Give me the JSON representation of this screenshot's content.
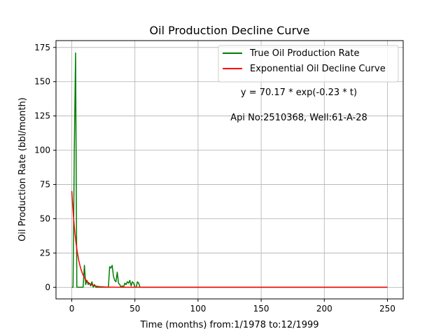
{
  "chart_data": {
    "type": "line",
    "title": "Oil Production Decline Curve",
    "xlabel": "Time (months) from:1/1978 to:12/1999",
    "ylabel": "Oil Production Rate (bbl/month)",
    "xlim": [
      -12.5,
      262.5
    ],
    "ylim": [
      -8.5,
      180
    ],
    "xticks": [
      0,
      50,
      100,
      150,
      200,
      250
    ],
    "yticks": [
      0,
      25,
      50,
      75,
      100,
      125,
      150,
      175
    ],
    "grid": true,
    "legend_position": "top-right",
    "annotations": [
      "y = 70.17 * exp(-0.23 * t)",
      "Api No:2510368, Well:61-A-28"
    ],
    "series": [
      {
        "name": "True Oil Production Rate",
        "color": "#008000",
        "x": [
          0,
          1,
          2,
          3,
          4,
          5,
          6,
          7,
          8,
          9,
          10,
          11,
          12,
          13,
          14,
          15,
          16,
          17,
          18,
          19,
          20,
          21,
          22,
          23,
          24,
          25,
          26,
          27,
          28,
          29,
          30,
          31,
          32,
          33,
          34,
          35,
          36,
          37,
          38,
          39,
          40,
          41,
          42,
          43,
          44,
          45,
          46,
          47,
          48,
          49,
          50,
          51,
          52,
          53,
          54,
          60,
          80,
          100,
          120,
          140,
          160,
          180,
          200,
          220,
          240,
          250
        ],
        "values": [
          0,
          0,
          100,
          171,
          0,
          0,
          0,
          0,
          0,
          0,
          16,
          2,
          5,
          2,
          3,
          1,
          4,
          0,
          2,
          0,
          0,
          0,
          0,
          0,
          0,
          0,
          0,
          0,
          0,
          0,
          15,
          14,
          16,
          8,
          5,
          4,
          11,
          3,
          2,
          0,
          1,
          0,
          3,
          2,
          4,
          3,
          5,
          1,
          4,
          3,
          0,
          0,
          4,
          3,
          0,
          0,
          0,
          0,
          0,
          0,
          0,
          0,
          0,
          0,
          0,
          0
        ]
      },
      {
        "name": "Exponential Oil Decline Curve",
        "color": "#ff0000",
        "model": {
          "a": 70.17,
          "b": 0.23
        },
        "x_range": [
          0,
          250
        ]
      }
    ]
  }
}
